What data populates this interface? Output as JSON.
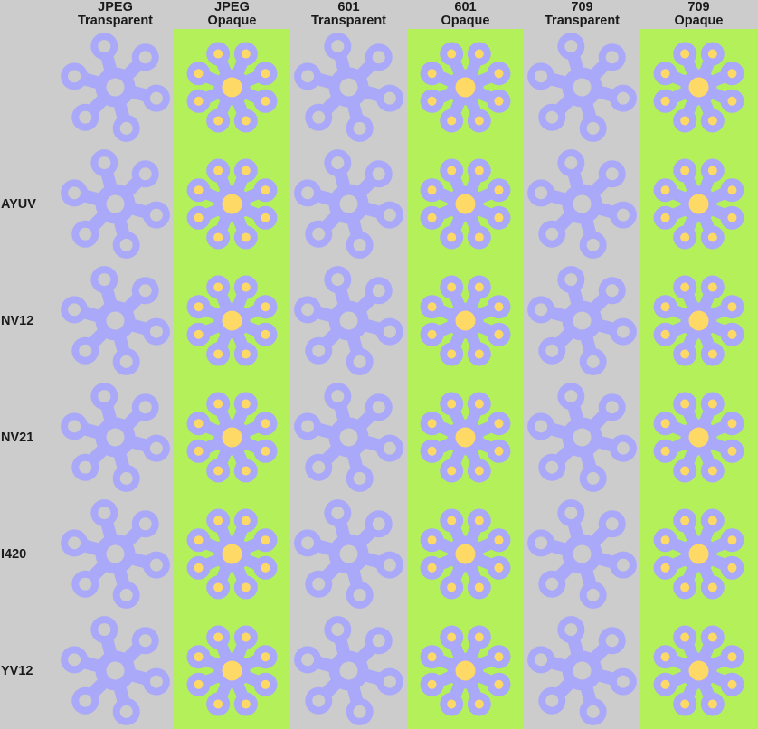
{
  "columns": [
    {
      "line1": "JPEG",
      "line2": "Transparent",
      "mode": "transparent"
    },
    {
      "line1": "JPEG",
      "line2": "Opaque",
      "mode": "opaque"
    },
    {
      "line1": "601",
      "line2": "Transparent",
      "mode": "transparent"
    },
    {
      "line1": "601",
      "line2": "Opaque",
      "mode": "opaque"
    },
    {
      "line1": "709",
      "line2": "Transparent",
      "mode": "transparent"
    },
    {
      "line1": "709",
      "line2": "Opaque",
      "mode": "opaque"
    }
  ],
  "rows": [
    "",
    "AYUV",
    "NV12",
    "NV21",
    "I420",
    "YV12"
  ],
  "colors": {
    "page_background": "#cccccc",
    "opaque_background": "#b3f05a",
    "flower": "#aaa8f8",
    "flower_hole_transparent": "#cccccc",
    "flower_hole_opaque": "#ffd966"
  },
  "icon": "flower-icon"
}
